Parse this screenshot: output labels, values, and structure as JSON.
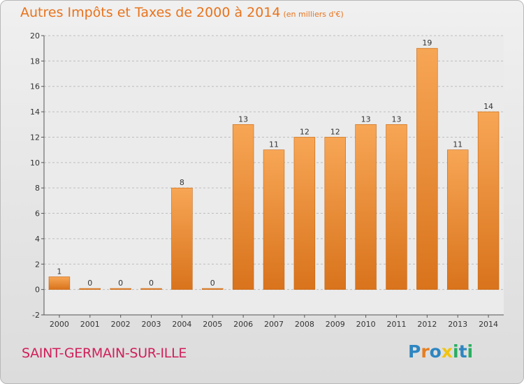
{
  "header": {
    "title": "Autres Impôts et Taxes de 2000 à 2014",
    "unit": "(en milliers d'€)"
  },
  "footer": {
    "commune": "SAINT-GERMAIN-SUR-ILLE",
    "brand": "Proxiti",
    "brand_letters": [
      {
        "ch": "P",
        "color": "#2e86c1"
      },
      {
        "ch": "r",
        "color": "#e67e22"
      },
      {
        "ch": "o",
        "color": "#2e86c1"
      },
      {
        "ch": "x",
        "color": "#f1c40f"
      },
      {
        "ch": "i",
        "color": "#27ae60"
      },
      {
        "ch": "t",
        "color": "#2e86c1"
      },
      {
        "ch": "i",
        "color": "#27ae60"
      }
    ]
  },
  "colors": {
    "bar_light": "#f7a655",
    "bar_dark": "#d9731c",
    "title": "#e8731c",
    "commune": "#d0205a"
  },
  "chart_data": {
    "type": "bar",
    "title": "Autres Impôts et Taxes de 2000 à 2014",
    "categories": [
      "2000",
      "2001",
      "2002",
      "2003",
      "2004",
      "2005",
      "2006",
      "2007",
      "2008",
      "2009",
      "2010",
      "2011",
      "2012",
      "2013",
      "2014"
    ],
    "values": [
      1,
      0,
      0,
      0,
      8,
      0,
      13,
      11,
      12,
      12,
      13,
      13,
      19,
      11,
      14
    ],
    "ylim": [
      -2,
      20
    ],
    "yticks": [
      -2,
      0,
      2,
      4,
      6,
      8,
      10,
      12,
      14,
      16,
      18,
      20
    ],
    "grid": true,
    "legend": "none"
  }
}
